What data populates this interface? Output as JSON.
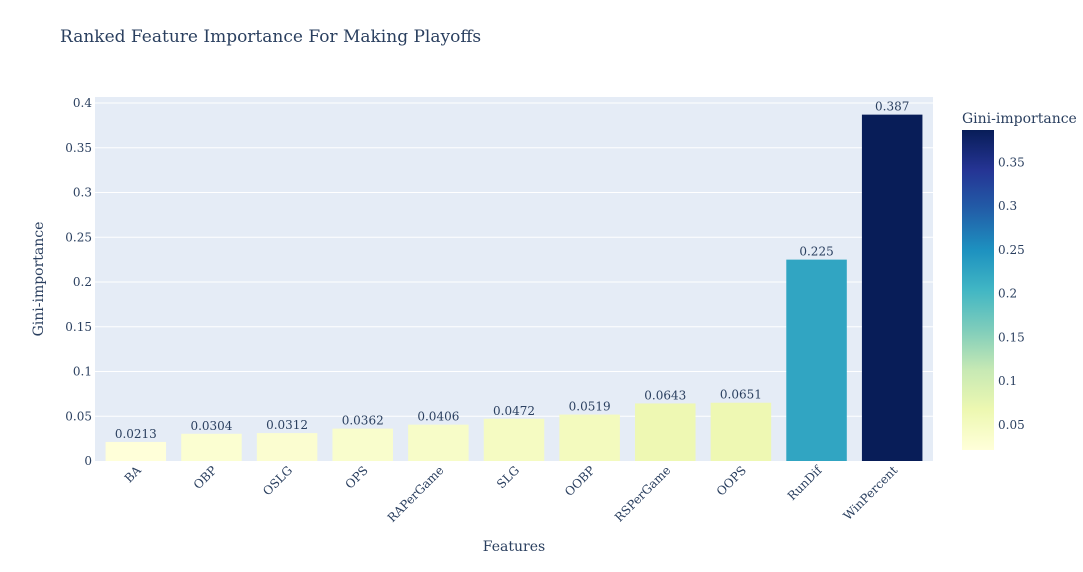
{
  "chart_data": {
    "type": "bar",
    "title": "Ranked Feature Importance For Making Playoffs",
    "xlabel": "Features",
    "ylabel": "Gini-importance",
    "categories": [
      "BA",
      "OBP",
      "OSLG",
      "OPS",
      "RAPerGame",
      "SLG",
      "OOBP",
      "RSPerGame",
      "OOPS",
      "RunDif",
      "WinPercent"
    ],
    "values": [
      0.0213,
      0.0304,
      0.0312,
      0.0362,
      0.0406,
      0.0472,
      0.0519,
      0.0643,
      0.0651,
      0.225,
      0.387
    ],
    "data_labels": [
      "0.0213",
      "0.0304",
      "0.0312",
      "0.0362",
      "0.0406",
      "0.0472",
      "0.0519",
      "0.0643",
      "0.0651",
      "0.225",
      "0.387"
    ],
    "ylim": [
      0,
      0.4
    ],
    "y_ticks": [
      0,
      0.05,
      0.1,
      0.15,
      0.2,
      0.25,
      0.3,
      0.35,
      0.4
    ],
    "y_tick_labels": [
      "0",
      "0.05",
      "0.1",
      "0.15",
      "0.2",
      "0.25",
      "0.3",
      "0.35",
      "0.4"
    ],
    "grid": true,
    "colorscale": {
      "name": "YlGnBu",
      "title": "Gini-importance",
      "range": [
        0.0213,
        0.387
      ],
      "ticks": [
        0.05,
        0.1,
        0.15,
        0.2,
        0.25,
        0.3,
        0.35
      ],
      "tick_labels": [
        "0.05",
        "0.1",
        "0.15",
        "0.2",
        "0.25",
        "0.3",
        "0.35"
      ],
      "stops": [
        [
          0,
          "#ffffd9"
        ],
        [
          0.125,
          "#edf8b1"
        ],
        [
          0.25,
          "#c7e9b4"
        ],
        [
          0.375,
          "#7fcdbb"
        ],
        [
          0.5,
          "#41b6c4"
        ],
        [
          0.625,
          "#1d91c0"
        ],
        [
          0.75,
          "#225ea8"
        ],
        [
          0.875,
          "#253494"
        ],
        [
          1,
          "#081d58"
        ]
      ]
    },
    "colors": {
      "plot_bg": "#e5ecf6",
      "grid": "#ffffff",
      "text": "#2a3f5f"
    }
  }
}
